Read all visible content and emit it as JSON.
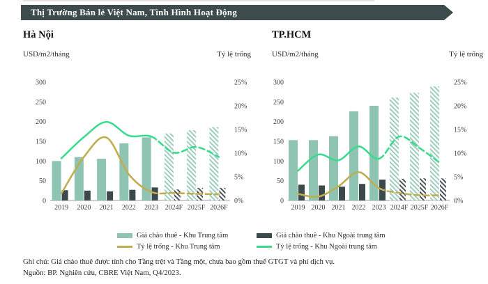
{
  "banner": {
    "title": "Thị Trường Bán lẻ Việt Nam, Tình Hình Hoạt Động",
    "bg_color": "#3e4b4d"
  },
  "footer": {
    "note": "Ghi chú: Giá chào thuê được tính cho Tầng trệt và Tầng một, chưa bao gồm thuế GTGT và phí dịch vụ.",
    "source": "Nguồn: BP. Nghiên cứu, CBRE Việt Nam, Q4/2023."
  },
  "legend": {
    "items": [
      {
        "label": "Giá chào thuê - Khu Trung tâm",
        "kind": "bar",
        "color": "#8ec4b1"
      },
      {
        "label": "Giá chào thuê - Khu Ngoài trung tâm",
        "kind": "bar",
        "color": "#3b494c"
      },
      {
        "label": "Tỷ lệ trống - Khu Trung tâm",
        "kind": "line",
        "color": "#c0ad51"
      },
      {
        "label": "Tỷ lệ trống - Khu Ngoài trung tâm",
        "kind": "line",
        "color": "#3bdb8d"
      }
    ]
  },
  "colors": {
    "bar_cbd": "#8ec4b1",
    "bar_noncbd": "#3b494c",
    "line_cbd": "#c0ad51",
    "line_noncbd": "#3bdb8d",
    "axis_text": "#3d3d3d",
    "baseline": "#9b9b9b"
  },
  "chart_data": [
    {
      "type": "bar",
      "title": "Hà Nội",
      "categories": [
        "2019",
        "2020",
        "2021",
        "2022",
        "2023",
        "2024F",
        "2025F",
        "2026F"
      ],
      "forecast_start_index": 5,
      "left_axis": {
        "label": "USD/m2/tháng",
        "min": 0,
        "max": 300,
        "ticks": [
          0,
          50,
          100,
          150,
          200,
          250,
          300
        ]
      },
      "right_axis": {
        "label": "Tỷ lệ trống",
        "min": 0,
        "max": 25,
        "ticks": [
          0,
          5,
          10,
          15,
          20,
          25
        ],
        "suffix": "%"
      },
      "grid": false,
      "series": [
        {
          "name": "Giá chào thuê - Khu Trung tâm",
          "kind": "bar",
          "axis": "left",
          "color": "#8ec4b1",
          "hatch_color": "#9ecdbd",
          "values": [
            100,
            110,
            106,
            145,
            160,
            170,
            178,
            186
          ]
        },
        {
          "name": "Giá chào thuê - Khu Ngoài trung tâm",
          "kind": "bar",
          "axis": "left",
          "color": "#3b494c",
          "hatch_color": "#4a5558",
          "values": [
            26,
            25,
            23,
            27,
            33,
            28,
            32,
            32
          ]
        },
        {
          "name": "Tỷ lệ trống - Khu Trung tâm",
          "kind": "line",
          "axis": "right",
          "color": "#c0ad51",
          "values": [
            1.5,
            9.2,
            13.3,
            5.5,
            1.8,
            1.6,
            1.4,
            1.3
          ]
        },
        {
          "name": "Tỷ lệ trống - Khu Ngoài trung tâm",
          "kind": "line",
          "axis": "right",
          "color": "#3bdb8d",
          "values": [
            8.9,
            13.4,
            16.6,
            13.7,
            13.5,
            10.1,
            11.3,
            9.2
          ]
        }
      ]
    },
    {
      "type": "bar",
      "title": "TP.HCM",
      "categories": [
        "2019",
        "2020",
        "2021",
        "2022",
        "2023",
        "2024F",
        "2025F",
        "2026F"
      ],
      "forecast_start_index": 5,
      "left_axis": {
        "label": "USD/m2/tháng",
        "min": 0,
        "max": 300,
        "ticks": [
          0,
          50,
          100,
          150,
          200,
          250,
          300
        ]
      },
      "right_axis": {
        "label": "Tỷ lệ trống",
        "min": 0,
        "max": 25,
        "ticks": [
          0,
          5,
          10,
          15,
          20,
          25
        ],
        "suffix": "%"
      },
      "grid": false,
      "series": [
        {
          "name": "Giá chào thuê - Khu Trung tâm",
          "kind": "bar",
          "axis": "left",
          "color": "#8ec4b1",
          "hatch_color": "#9ecdbd",
          "values": [
            153,
            153,
            163,
            226,
            240,
            261,
            273,
            289
          ]
        },
        {
          "name": "Giá chào thuê - Khu Ngoài trung tâm",
          "kind": "bar",
          "axis": "left",
          "color": "#3b494c",
          "hatch_color": "#4a5558",
          "values": [
            40,
            38,
            35,
            42,
            53,
            55,
            56,
            56
          ]
        },
        {
          "name": "Tỷ lệ trống - Khu Trung tâm",
          "kind": "line",
          "axis": "right",
          "color": "#c0ad51",
          "values": [
            1.4,
            0.8,
            3.0,
            6.0,
            2.6,
            1.6,
            1.1,
            1.1
          ]
        },
        {
          "name": "Tỷ lệ trống - Khu Ngoài trung tâm",
          "kind": "line",
          "axis": "right",
          "color": "#3bdb8d",
          "values": [
            6.3,
            9.7,
            8.5,
            11.4,
            8.8,
            13.5,
            11.1,
            8.0
          ]
        }
      ]
    }
  ]
}
